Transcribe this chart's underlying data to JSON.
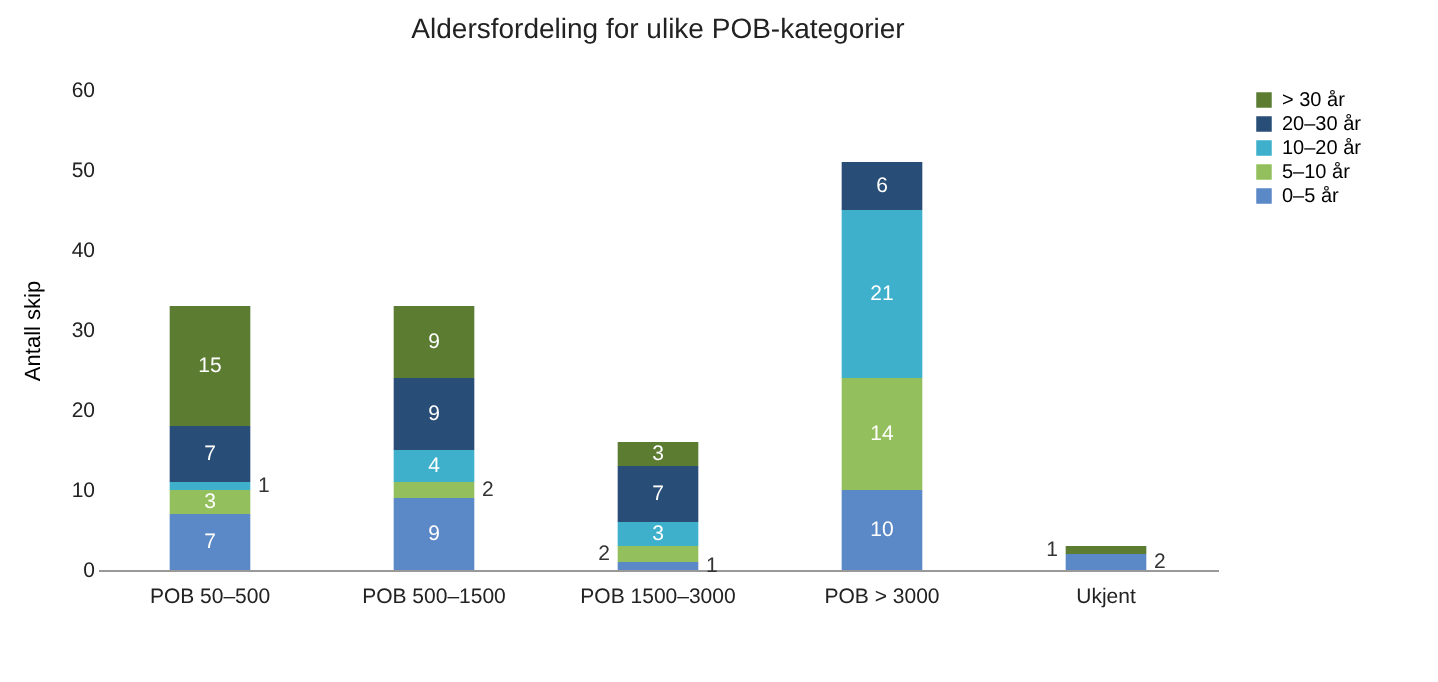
{
  "chart_data": {
    "type": "bar",
    "title": "Aldersfordeling for ulike POB-kategorier",
    "ylabel": "Antall skip",
    "stacked": true,
    "data_labels": true,
    "legend": "right",
    "grid": false,
    "categories": [
      "POB 50–500",
      "POB 500–1500",
      "POB 1500–3000",
      "POB > 3000",
      "Ukjent"
    ],
    "ylim": [
      0,
      60
    ],
    "yticks": [
      0,
      10,
      20,
      30,
      40,
      50,
      60
    ],
    "series": [
      {
        "name": "0–5 år",
        "color": "#5b88c6",
        "values": [
          7,
          9,
          1,
          10,
          2
        ]
      },
      {
        "name": "5–10 år",
        "color": "#93c05c",
        "values": [
          3,
          2,
          2,
          14,
          null
        ]
      },
      {
        "name": "10–20 år",
        "color": "#3fb0cc",
        "values": [
          1,
          4,
          3,
          21,
          null
        ]
      },
      {
        "name": "20–30 år",
        "color": "#284d77",
        "values": [
          7,
          9,
          7,
          6,
          null
        ]
      },
      {
        "name": "> 30 år",
        "color": "#5c7c32",
        "values": [
          15,
          9,
          3,
          null,
          1
        ]
      }
    ]
  }
}
